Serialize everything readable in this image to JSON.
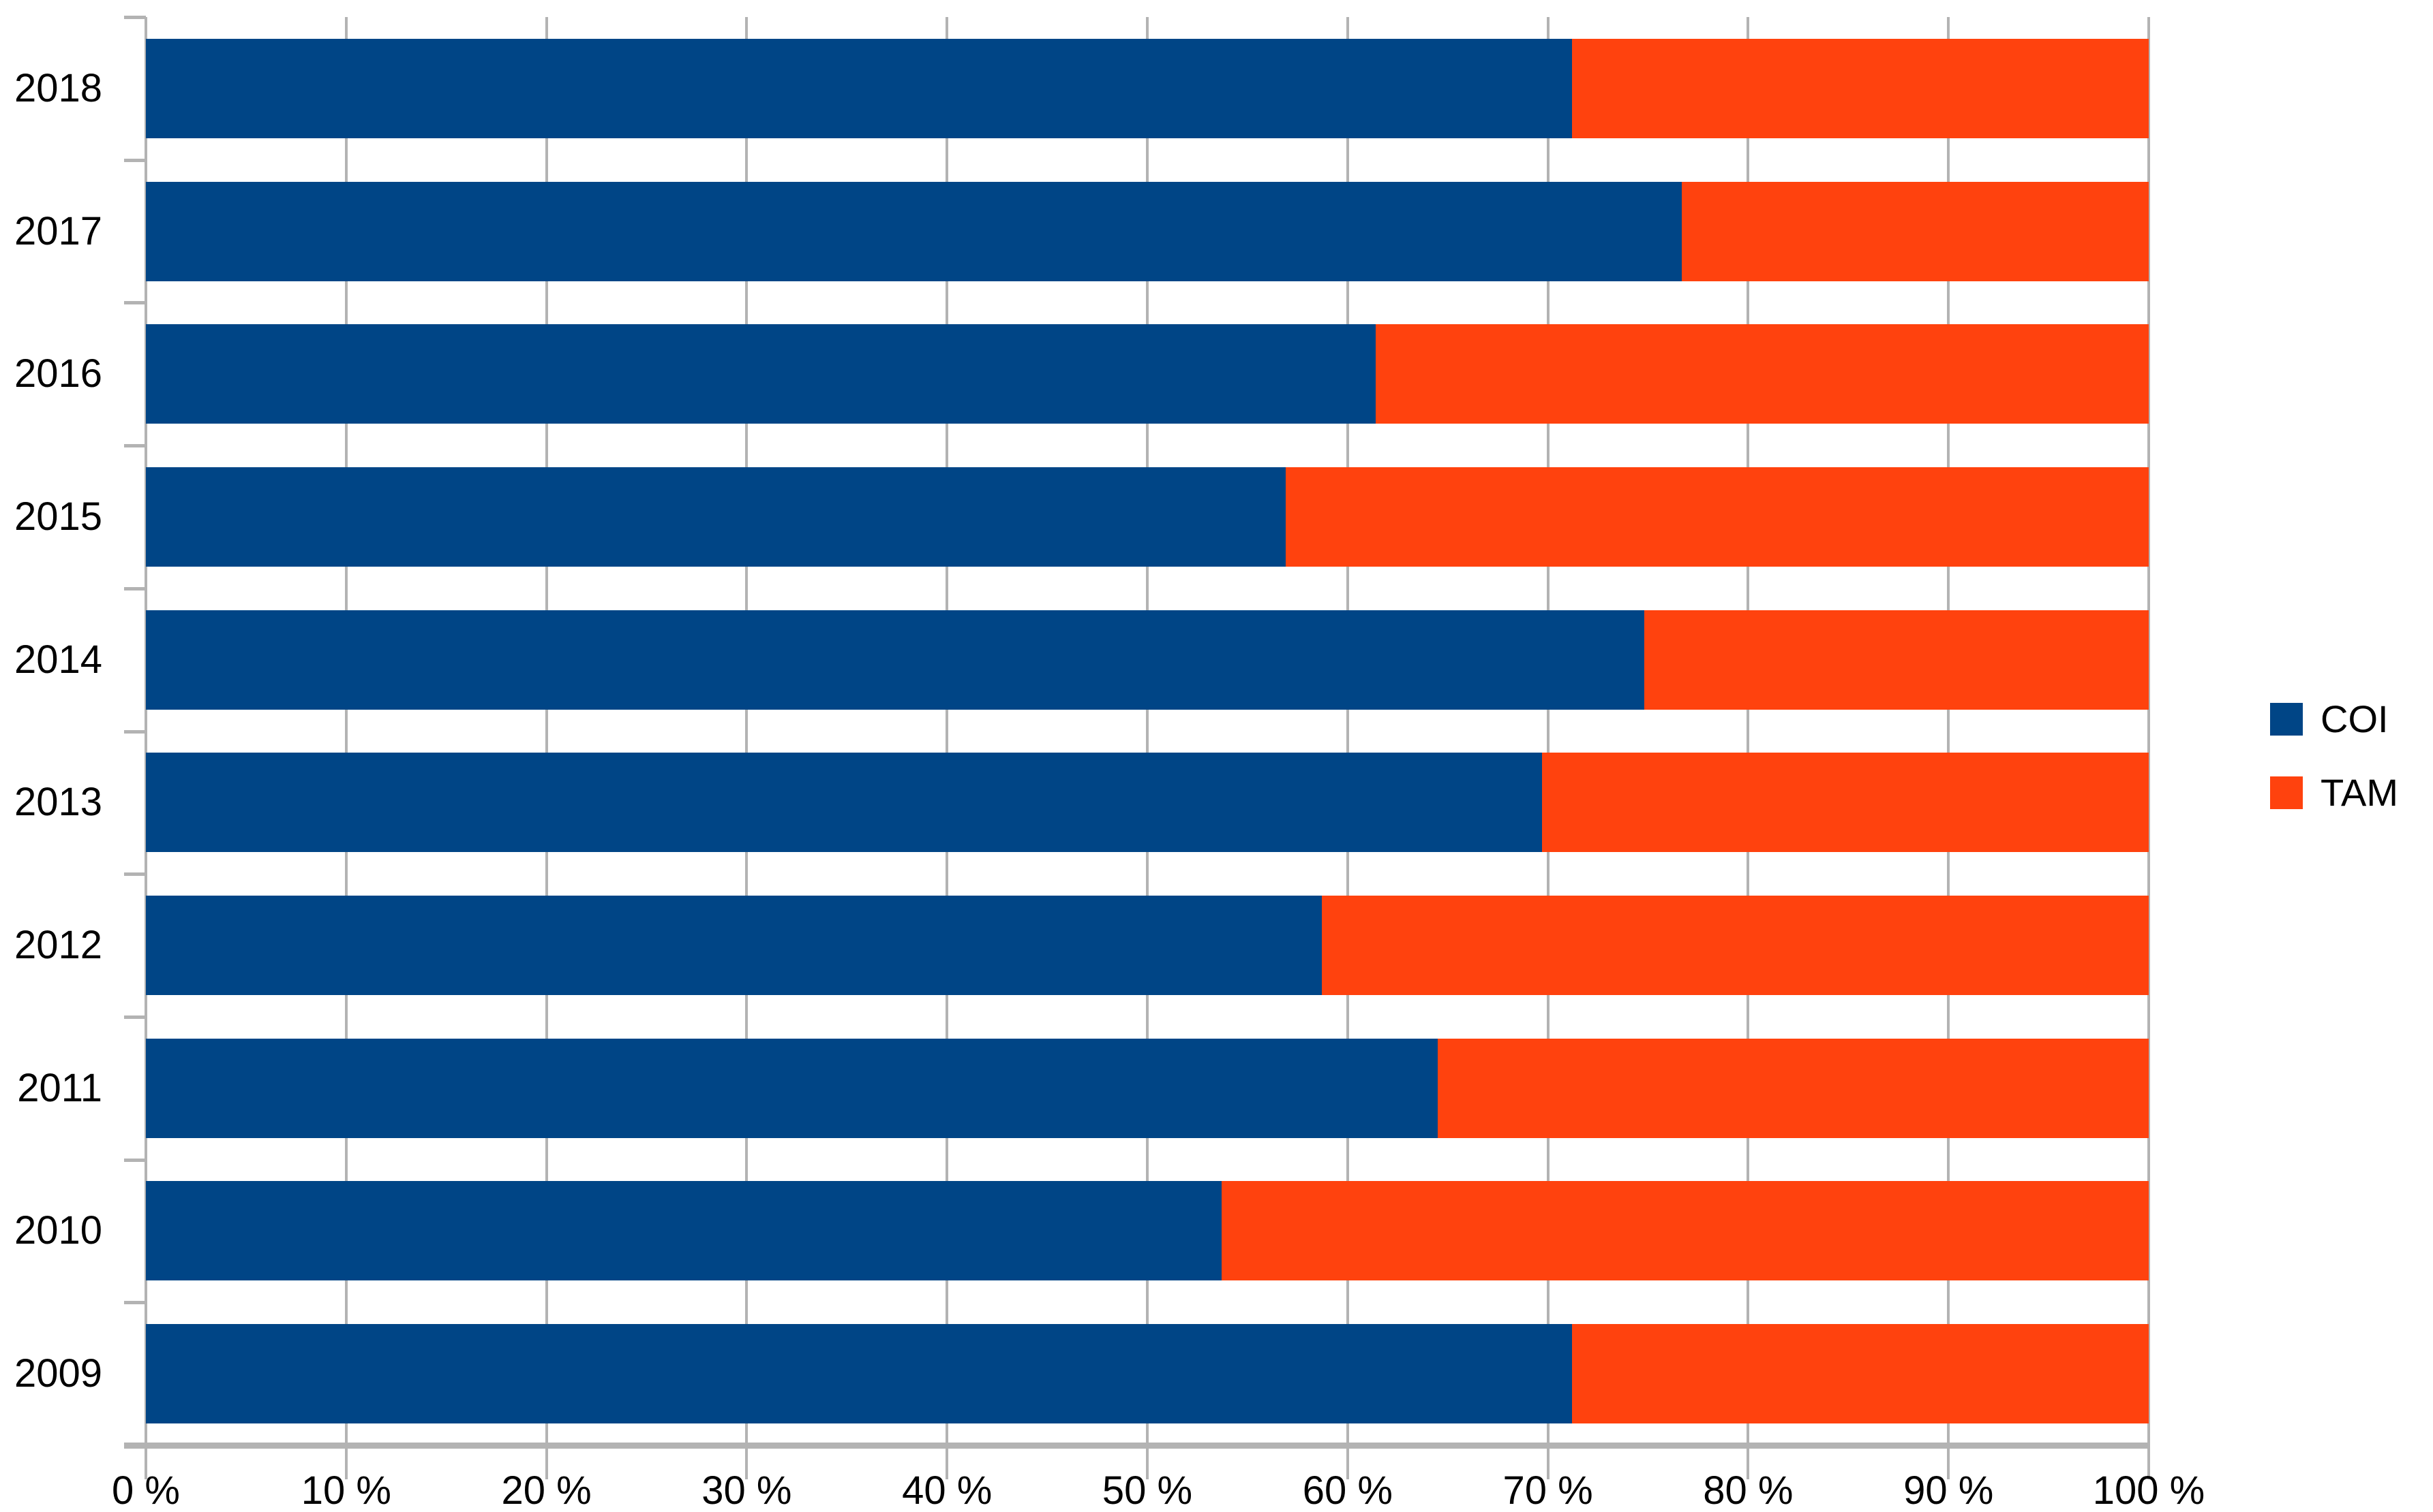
{
  "chart_data": {
    "type": "bar",
    "orientation": "horizontal",
    "stacked": true,
    "stacked_total": 100,
    "title": "",
    "categories": [
      "2018",
      "2017",
      "2016",
      "2015",
      "2014",
      "2013",
      "2012",
      "2011",
      "2010",
      "2009"
    ],
    "series": [
      {
        "name": "COI",
        "color": "#004586",
        "values": [
          71.2,
          76.7,
          61.4,
          56.9,
          74.8,
          69.7,
          58.7,
          64.5,
          53.7,
          71.2
        ]
      },
      {
        "name": "TAM",
        "color": "#FF420E",
        "values": [
          28.8,
          23.3,
          38.6,
          43.1,
          25.2,
          30.3,
          41.3,
          35.5,
          46.3,
          28.8
        ]
      }
    ],
    "x_axis": {
      "min": 0,
      "max": 100,
      "step": 10,
      "tick_labels": [
        "0 %",
        "10 %",
        "20 %",
        "30 %",
        "40 %",
        "50 %",
        "60 %",
        "70 %",
        "80 %",
        "90 %",
        "100 %"
      ]
    },
    "grid": "vertical",
    "legend": {
      "position": "right",
      "entries": [
        "COI",
        "TAM"
      ]
    },
    "axis_color": "#b3b3b3",
    "gridline_color": "#b3b3b3",
    "label_color": "#000000",
    "background_color": "#ffffff"
  }
}
